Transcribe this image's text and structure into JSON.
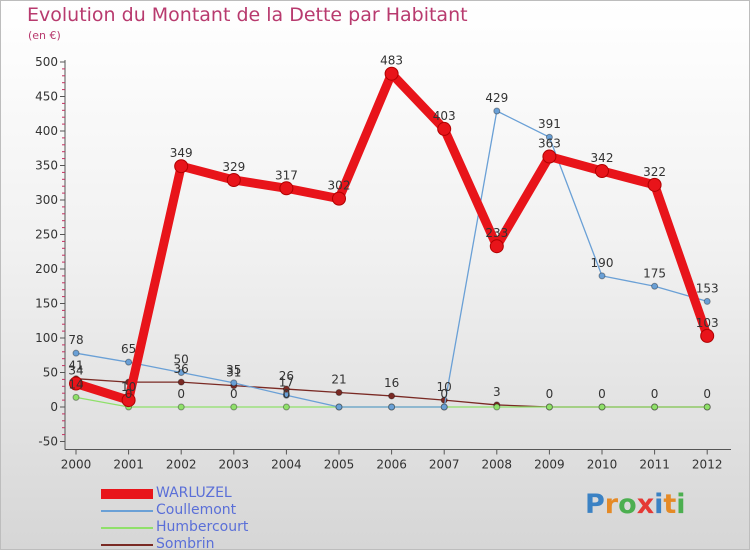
{
  "title": "Evolution du Montant de la Dette par Habitant",
  "subtitle": "(en €)",
  "brand": {
    "text": "Proxiti",
    "colors": [
      "#3b82c4",
      "#e58a26",
      "#4caf50",
      "#e53935",
      "#3b82c4",
      "#e58a26",
      "#4caf50"
    ]
  },
  "chart_data": {
    "type": "line",
    "categories": [
      "2000",
      "2001",
      "2002",
      "2003",
      "2004",
      "2005",
      "2006",
      "2007",
      "2008",
      "2009",
      "2010",
      "2011",
      "2012"
    ],
    "y_ticks": [
      "-50",
      "0",
      "50",
      "100",
      "150",
      "200",
      "250",
      "300",
      "350",
      "400",
      "450",
      "500"
    ],
    "ylim": [
      -50,
      500
    ],
    "grid": false,
    "legend_position": "bottom-left",
    "series": [
      {
        "name": "WARLUZEL",
        "color": "#e8141a",
        "values": [
          34,
          10,
          349,
          329,
          317,
          302,
          483,
          403,
          233,
          363,
          342,
          322,
          103
        ],
        "labels": [
          "34",
          "10",
          "349",
          "329",
          "317",
          "302",
          "483",
          "403",
          "233",
          "363",
          "342",
          "322",
          "103"
        ]
      },
      {
        "name": "Coullemont",
        "color": "#6aa0d6",
        "values": [
          78,
          65,
          50,
          35,
          17,
          0,
          0,
          0,
          429,
          391,
          190,
          175,
          153
        ],
        "labels": [
          "78",
          "65",
          "50",
          "35",
          "17",
          "",
          "",
          "",
          "429",
          "391",
          "190",
          "175",
          "153"
        ]
      },
      {
        "name": "Humbercourt",
        "color": "#8fe06a",
        "values": [
          14,
          0,
          0,
          0,
          0,
          0,
          0,
          0,
          0,
          0,
          0,
          0,
          0
        ],
        "labels": [
          "14",
          "0",
          "0",
          "0",
          "0",
          "",
          "",
          "0",
          "",
          "",
          "",
          "",
          ""
        ]
      },
      {
        "name": "Sombrin",
        "color": "#7a2a24",
        "values": [
          41,
          36,
          36,
          31,
          26,
          21,
          16,
          10,
          3,
          0,
          0,
          0,
          0
        ],
        "labels": [
          "41",
          "",
          "36",
          "31",
          "26",
          "21",
          "16",
          "10",
          "3",
          "0",
          "0",
          "0",
          "0"
        ]
      }
    ]
  }
}
